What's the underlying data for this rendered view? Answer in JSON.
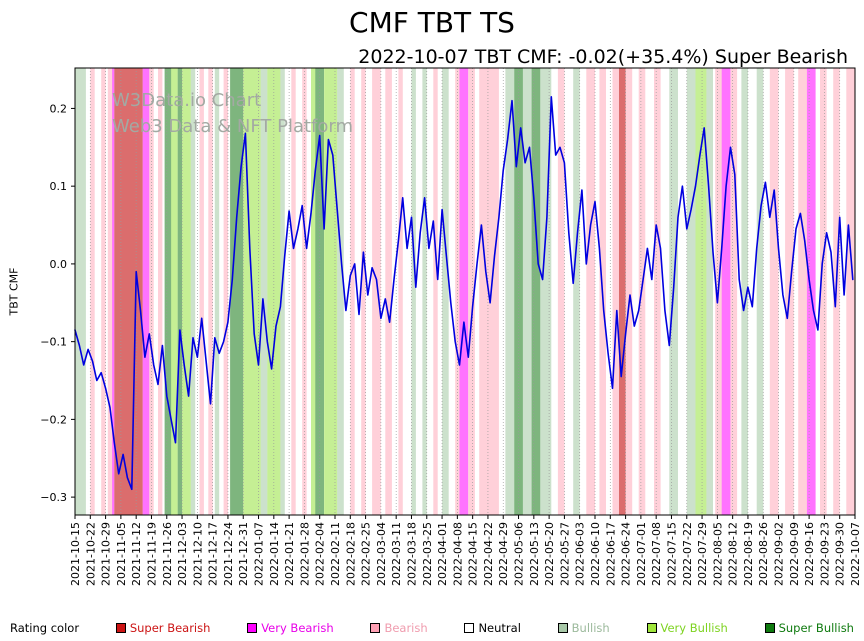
{
  "watermark": {
    "line1": "W3Data.io Chart",
    "line2": "Web3 Data & NFT Platform",
    "color": "#a3a9a3"
  },
  "legend": {
    "label": "Rating color",
    "items": [
      {
        "id": "super-bearish",
        "label": "Super Bearish",
        "swatch": "#cc1414",
        "text_color": "#cc1414"
      },
      {
        "id": "very-bearish",
        "label": "Very Bearish",
        "swatch": "#ff00ff",
        "text_color": "#e800e8"
      },
      {
        "id": "bearish",
        "label": "Bearish",
        "swatch": "#ffa0b4",
        "text_color": "#f09cae"
      },
      {
        "id": "neutral",
        "label": "Neutral",
        "swatch": "#ffffff",
        "text_color": "#000000"
      },
      {
        "id": "bullish",
        "label": "Bullish",
        "swatch": "#a8c8a8",
        "text_color": "#9cba9c"
      },
      {
        "id": "very-bullish",
        "label": "Very Bullish",
        "swatch": "#a0e63c",
        "text_color": "#7ed321"
      },
      {
        "id": "super-bullish",
        "label": "Super Bullish",
        "swatch": "#0f7a0f",
        "text_color": "#0f7a0f"
      }
    ]
  },
  "chart_data": {
    "type": "line",
    "title": "CMF TBT TS",
    "subtitle": "2022-10-07 TBT CMF: -0.02(+35.4%) Super Bearish",
    "ylabel": "TBT CMF",
    "ylim": [
      -0.323,
      0.252
    ],
    "y_ticks": [
      0.2,
      0.1,
      0.0,
      -0.1,
      -0.2,
      -0.3
    ],
    "grid": "vertical-dotted",
    "legend_position": "bottom",
    "x_start_date": "2021-10-15",
    "x_end_date": "2022-10-07",
    "x_total_days": 357,
    "x_tick_interval_days": 7,
    "x_ticks": [
      "2021-10-15",
      "2021-10-22",
      "2021-10-29",
      "2021-11-05",
      "2021-11-12",
      "2021-11-19",
      "2021-11-26",
      "2021-12-03",
      "2021-12-10",
      "2021-12-17",
      "2021-12-24",
      "2021-12-31",
      "2022-01-07",
      "2022-01-14",
      "2022-01-21",
      "2022-01-28",
      "2022-02-04",
      "2022-02-11",
      "2022-02-18",
      "2022-02-25",
      "2022-03-04",
      "2022-03-11",
      "2022-03-18",
      "2022-03-25",
      "2022-04-01",
      "2022-04-08",
      "2022-04-15",
      "2022-04-22",
      "2022-04-29",
      "2022-05-06",
      "2022-05-13",
      "2022-05-20",
      "2022-05-27",
      "2022-06-03",
      "2022-06-10",
      "2022-06-17",
      "2022-06-24",
      "2022-07-01",
      "2022-07-08",
      "2022-07-15",
      "2022-07-22",
      "2022-07-29",
      "2022-08-05",
      "2022-08-12",
      "2022-08-19",
      "2022-08-26",
      "2022-09-02",
      "2022-09-09",
      "2022-09-16",
      "2022-09-23",
      "2022-09-30",
      "2022-10-07"
    ],
    "series": [
      {
        "name": "TBT CMF",
        "color": "#0000e0",
        "step_days": 2,
        "values": [
          -0.085,
          -0.105,
          -0.13,
          -0.11,
          -0.125,
          -0.15,
          -0.14,
          -0.16,
          -0.185,
          -0.23,
          -0.27,
          -0.245,
          -0.275,
          -0.29,
          -0.01,
          -0.06,
          -0.12,
          -0.09,
          -0.13,
          -0.155,
          -0.105,
          -0.17,
          -0.2,
          -0.23,
          -0.085,
          -0.13,
          -0.17,
          -0.095,
          -0.12,
          -0.07,
          -0.125,
          -0.18,
          -0.095,
          -0.115,
          -0.1,
          -0.075,
          -0.02,
          0.06,
          0.125,
          0.168,
          0.02,
          -0.09,
          -0.13,
          -0.045,
          -0.1,
          -0.135,
          -0.08,
          -0.055,
          0.01,
          0.068,
          0.02,
          0.045,
          0.075,
          0.02,
          0.065,
          0.12,
          0.165,
          0.045,
          0.16,
          0.14,
          0.07,
          0.0,
          -0.06,
          -0.015,
          0.0,
          -0.065,
          0.015,
          -0.04,
          -0.005,
          -0.02,
          -0.07,
          -0.045,
          -0.075,
          -0.02,
          0.03,
          0.085,
          0.02,
          0.06,
          -0.03,
          0.04,
          0.085,
          0.02,
          0.055,
          -0.02,
          0.07,
          0.01,
          -0.05,
          -0.1,
          -0.13,
          -0.075,
          -0.12,
          -0.055,
          0.0,
          0.05,
          -0.01,
          -0.05,
          0.01,
          0.06,
          0.12,
          0.16,
          0.21,
          0.125,
          0.175,
          0.13,
          0.15,
          0.085,
          0.0,
          -0.02,
          0.06,
          0.215,
          0.14,
          0.15,
          0.13,
          0.04,
          -0.025,
          0.04,
          0.095,
          0.0,
          0.05,
          0.08,
          0.02,
          -0.06,
          -0.115,
          -0.16,
          -0.06,
          -0.145,
          -0.09,
          -0.04,
          -0.08,
          -0.06,
          -0.02,
          0.02,
          -0.02,
          0.05,
          0.02,
          -0.06,
          -0.105,
          -0.03,
          0.06,
          0.1,
          0.045,
          0.07,
          0.1,
          0.14,
          0.175,
          0.1,
          0.015,
          -0.05,
          0.02,
          0.1,
          0.15,
          0.115,
          -0.02,
          -0.06,
          -0.03,
          -0.055,
          0.02,
          0.075,
          0.105,
          0.06,
          0.095,
          0.02,
          -0.04,
          -0.07,
          -0.01,
          0.045,
          0.065,
          0.03,
          -0.02,
          -0.06,
          -0.085,
          0.0,
          0.04,
          0.015,
          -0.055,
          0.06,
          -0.04,
          0.05,
          -0.02
        ]
      }
    ],
    "band_colors": {
      "super_bearish": "rgba(200,30,30,0.65)",
      "very_bearish": "rgba(255,0,255,0.55)",
      "bearish": "rgba(255,150,170,0.45)",
      "neutral": "#ffffff",
      "bullish": "rgba(110,170,110,0.35)",
      "very_bullish": "rgba(150,225,60,0.55)",
      "super_bullish": "rgba(20,120,20,0.55)"
    },
    "bands": [
      [
        0,
        5,
        "bullish"
      ],
      [
        7,
        9,
        "bearish"
      ],
      [
        12,
        14,
        "bearish"
      ],
      [
        15,
        17,
        "bearish"
      ],
      [
        17,
        18,
        "very_bearish"
      ],
      [
        18,
        31,
        "super_bearish"
      ],
      [
        31,
        34,
        "very_bearish"
      ],
      [
        34,
        36,
        "bearish"
      ],
      [
        38,
        40,
        "bearish"
      ],
      [
        41,
        44,
        "super_bullish"
      ],
      [
        44,
        47,
        "very_bullish"
      ],
      [
        47,
        49,
        "super_bullish"
      ],
      [
        49,
        53,
        "very_bullish"
      ],
      [
        53,
        55,
        "bullish"
      ],
      [
        57,
        59,
        "bearish"
      ],
      [
        61,
        63,
        "bearish"
      ],
      [
        64,
        66,
        "bullish"
      ],
      [
        68,
        70,
        "bearish"
      ],
      [
        71,
        77,
        "super_bullish"
      ],
      [
        77,
        85,
        "very_bullish"
      ],
      [
        85,
        88,
        "bullish"
      ],
      [
        88,
        94,
        "very_bullish"
      ],
      [
        94,
        96,
        "bullish"
      ],
      [
        99,
        101,
        "bearish"
      ],
      [
        104,
        106,
        "bearish"
      ],
      [
        108,
        110,
        "very_bullish"
      ],
      [
        110,
        114,
        "super_bullish"
      ],
      [
        114,
        120,
        "very_bullish"
      ],
      [
        120,
        123,
        "bullish"
      ],
      [
        126,
        128,
        "bearish"
      ],
      [
        131,
        133,
        "bearish"
      ],
      [
        136,
        140,
        "bearish"
      ],
      [
        142,
        145,
        "bearish"
      ],
      [
        148,
        150,
        "bearish"
      ],
      [
        154,
        156,
        "bullish"
      ],
      [
        159,
        161,
        "bullish"
      ],
      [
        164,
        166,
        "bearish"
      ],
      [
        168,
        171,
        "bullish"
      ],
      [
        174,
        176,
        "bearish"
      ],
      [
        176,
        180,
        "very_bearish"
      ],
      [
        180,
        183,
        "bearish"
      ],
      [
        185,
        194,
        "bearish"
      ],
      [
        197,
        201,
        "bullish"
      ],
      [
        201,
        205,
        "super_bullish"
      ],
      [
        205,
        209,
        "bullish"
      ],
      [
        209,
        213,
        "super_bullish"
      ],
      [
        213,
        218,
        "bullish"
      ],
      [
        221,
        224,
        "bearish"
      ],
      [
        228,
        231,
        "bullish"
      ],
      [
        234,
        238,
        "bearish"
      ],
      [
        240,
        243,
        "bearish"
      ],
      [
        246,
        249,
        "bearish"
      ],
      [
        249,
        252,
        "super_bearish"
      ],
      [
        252,
        255,
        "bearish"
      ],
      [
        258,
        261,
        "bearish"
      ],
      [
        265,
        268,
        "bearish"
      ],
      [
        272,
        276,
        "bullish"
      ],
      [
        280,
        284,
        "bullish"
      ],
      [
        284,
        289,
        "very_bullish"
      ],
      [
        289,
        292,
        "bullish"
      ],
      [
        293,
        296,
        "bearish"
      ],
      [
        296,
        300,
        "very_bearish"
      ],
      [
        300,
        303,
        "bearish"
      ],
      [
        305,
        308,
        "bullish"
      ],
      [
        312,
        315,
        "bullish"
      ],
      [
        318,
        322,
        "bearish"
      ],
      [
        325,
        329,
        "bearish"
      ],
      [
        331,
        335,
        "bearish"
      ],
      [
        335,
        339,
        "very_bearish"
      ],
      [
        341,
        344,
        "bearish"
      ],
      [
        347,
        350,
        "bearish"
      ],
      [
        353,
        357,
        "bearish"
      ]
    ]
  }
}
